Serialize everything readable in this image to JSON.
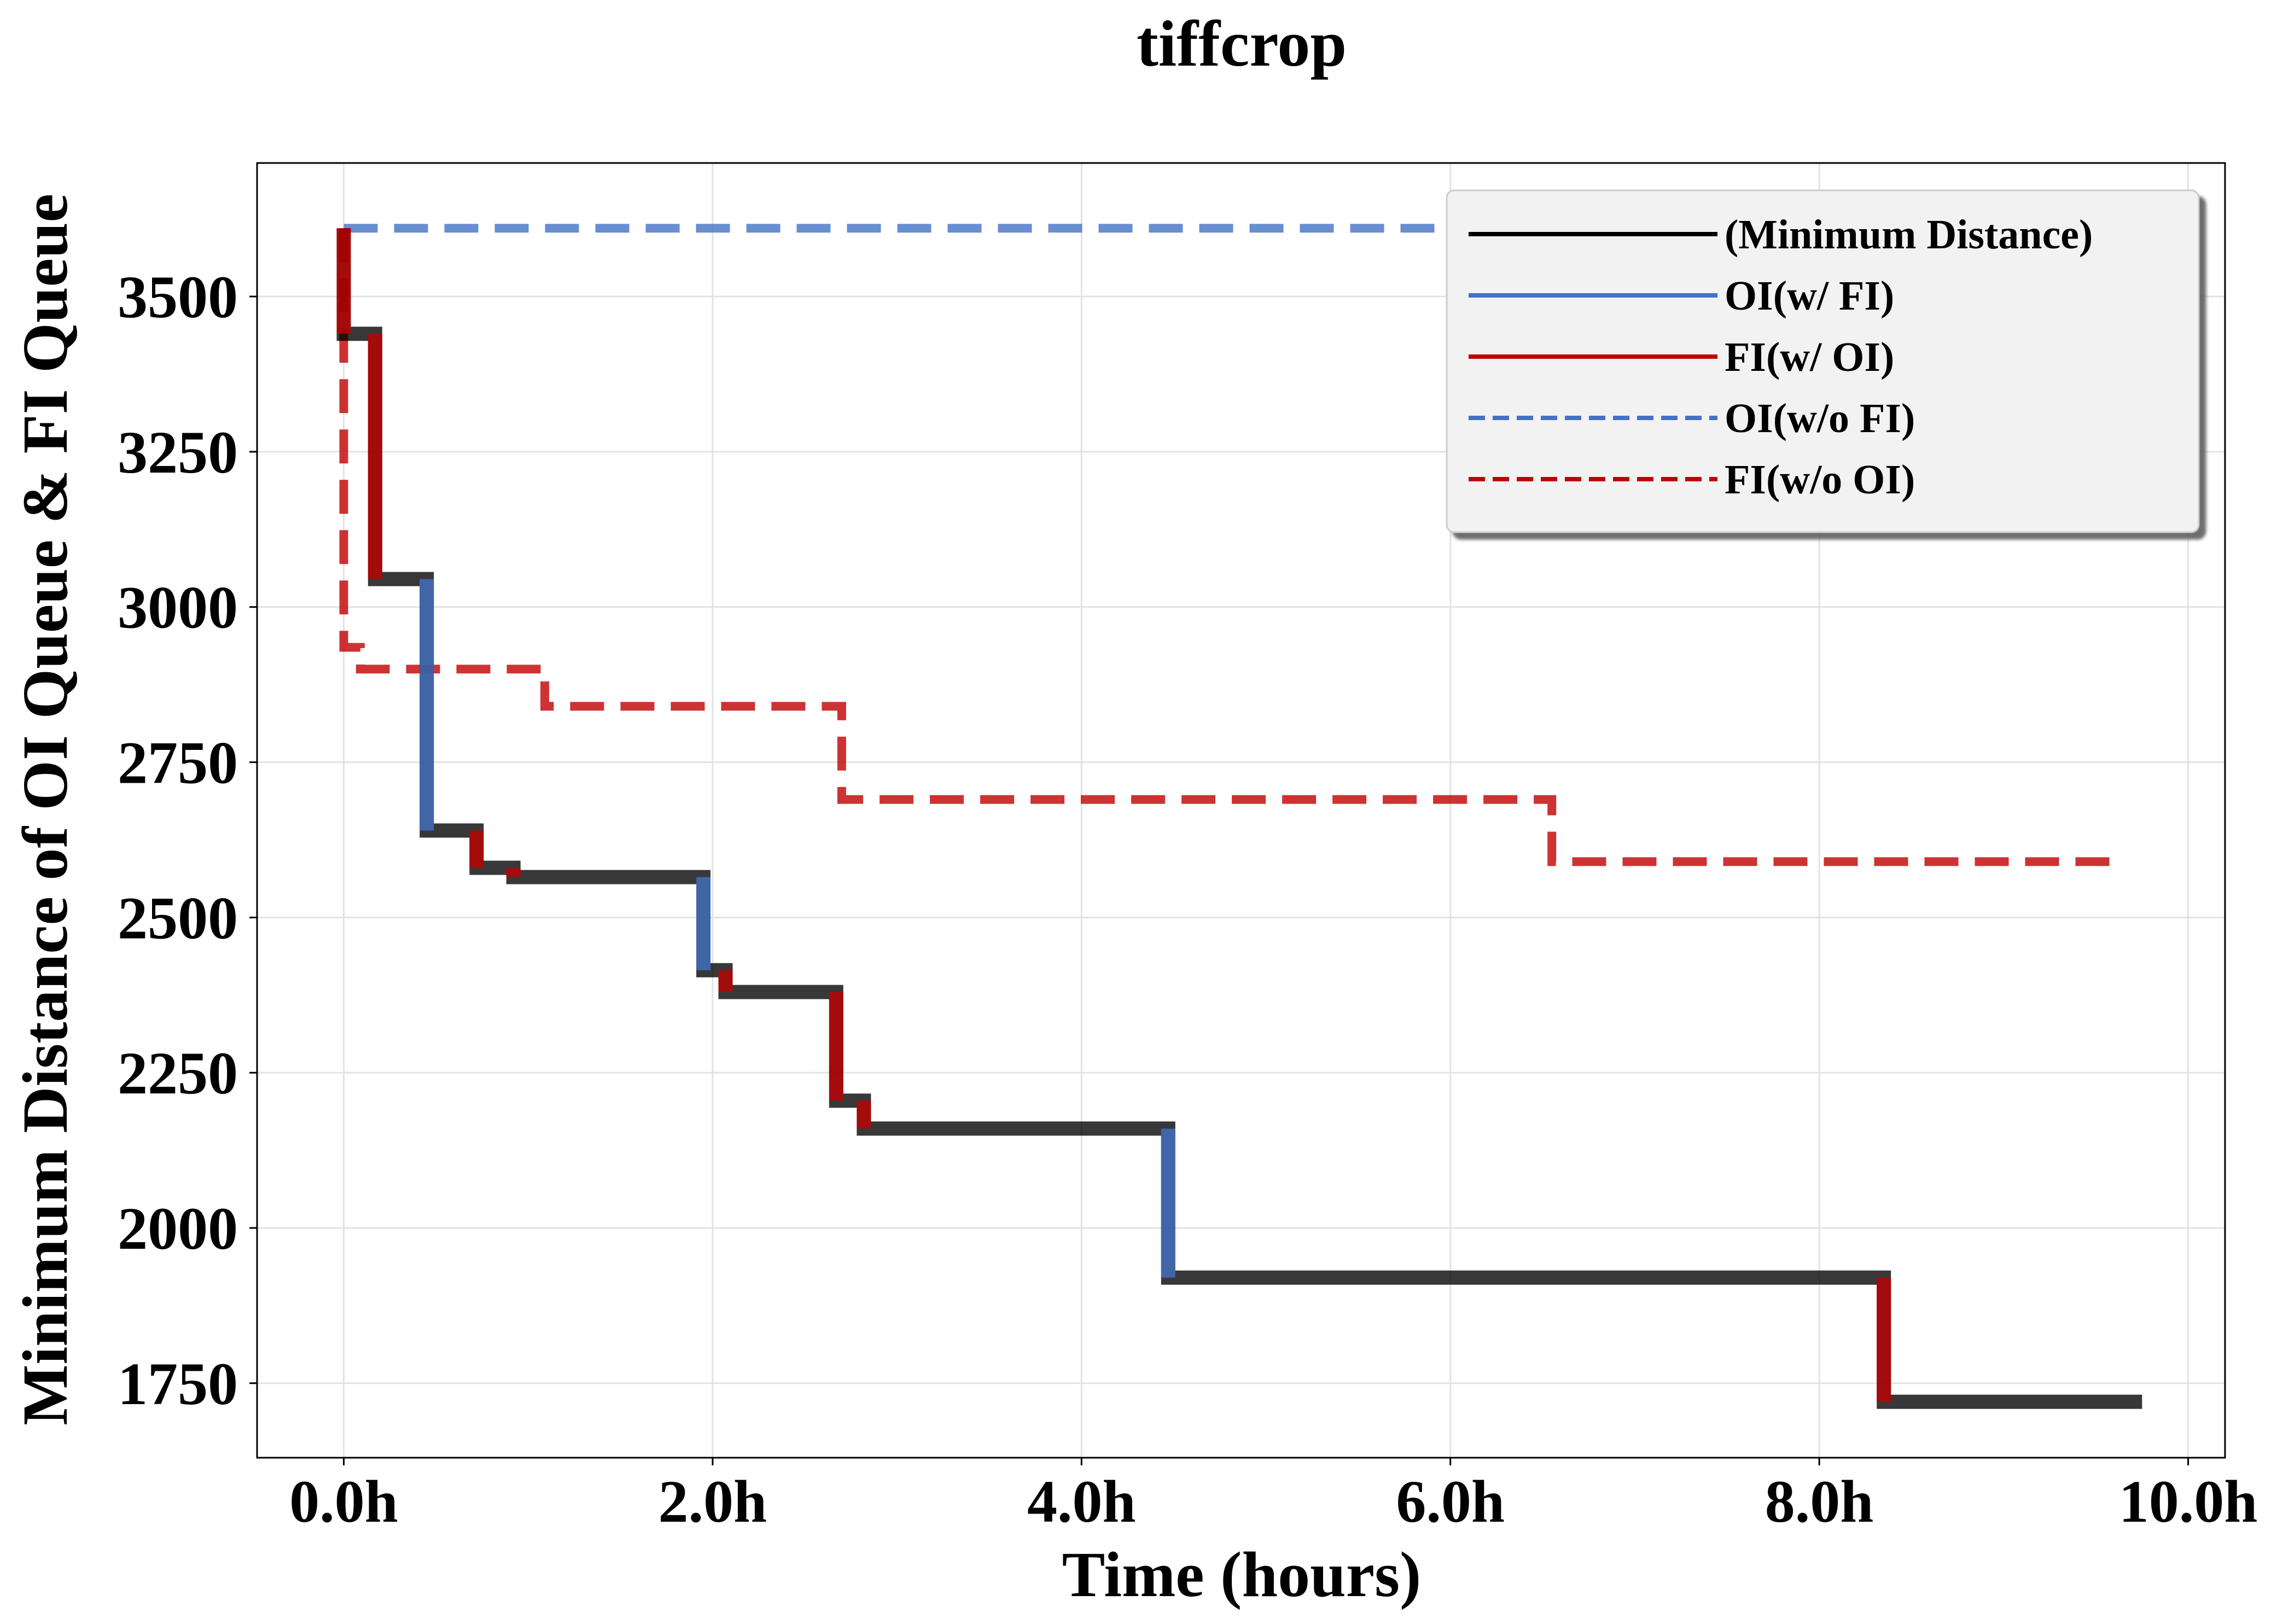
{
  "chart_data": {
    "type": "line",
    "title": "tiffcrop",
    "xlabel": "Time (hours)",
    "ylabel": "Minimum Distance of OI Queue & FI Queue",
    "xlim": [
      -0.47,
      10.2
    ],
    "ylim": [
      1630,
      3715
    ],
    "xticks": [
      0,
      2,
      4,
      6,
      8,
      10
    ],
    "xtick_labels": [
      "0.0h",
      "2.0h",
      "4.0h",
      "6.0h",
      "8.0h",
      "10.0h"
    ],
    "yticks": [
      1750,
      2000,
      2250,
      2500,
      2750,
      3000,
      3250,
      3500
    ],
    "ytick_labels": [
      "1750",
      "2000",
      "2250",
      "2500",
      "2750",
      "3000",
      "3250",
      "3500"
    ],
    "grid": true,
    "legend_position": "top-right",
    "colors": {
      "min": "#000000",
      "oi": "#4472c4",
      "fi": "#c00000"
    },
    "legend": [
      {
        "label": "(Minimum Distance)",
        "color": "#000000",
        "dash": false
      },
      {
        "label": "OI(w/ FI)",
        "color": "#4472c4",
        "dash": false
      },
      {
        "label": "FI(w/ OI)",
        "color": "#c00000",
        "dash": false
      },
      {
        "label": "OI(w/o FI)",
        "color": "#4472c4",
        "dash": true
      },
      {
        "label": "FI(w/o OI)",
        "color": "#c00000",
        "dash": true
      }
    ],
    "series": [
      {
        "label": "(Minimum Distance)",
        "style": "step",
        "color": "#000000",
        "points": [
          [
            0.0,
            3610
          ],
          [
            0.0,
            3440
          ],
          [
            0.17,
            3440
          ],
          [
            0.17,
            3045
          ],
          [
            0.45,
            3045
          ],
          [
            0.45,
            2640
          ],
          [
            0.72,
            2640
          ],
          [
            0.72,
            2580
          ],
          [
            0.92,
            2580
          ],
          [
            0.92,
            2565
          ],
          [
            1.95,
            2565
          ],
          [
            1.95,
            2415
          ],
          [
            2.07,
            2415
          ],
          [
            2.07,
            2380
          ],
          [
            2.67,
            2380
          ],
          [
            2.67,
            2205
          ],
          [
            2.82,
            2205
          ],
          [
            2.82,
            2160
          ],
          [
            4.47,
            2160
          ],
          [
            4.47,
            1920
          ],
          [
            8.35,
            1920
          ],
          [
            8.35,
            1720
          ],
          [
            9.75,
            1720
          ]
        ]
      },
      {
        "label": "OI(w/o FI)",
        "style": "dashed",
        "color": "#4472c4",
        "points": [
          [
            0.0,
            3610
          ],
          [
            6.05,
            3610
          ]
        ]
      },
      {
        "label": "FI(w/o OI)",
        "style": "dashed",
        "color": "#c00000",
        "points": [
          [
            0.0,
            3610
          ],
          [
            0.0,
            2935
          ],
          [
            0.09,
            2935
          ],
          [
            0.09,
            2900
          ],
          [
            1.09,
            2900
          ],
          [
            1.09,
            2840
          ],
          [
            2.7,
            2840
          ],
          [
            2.7,
            2690
          ],
          [
            6.55,
            2690
          ],
          [
            6.55,
            2590
          ],
          [
            9.65,
            2590
          ]
        ]
      }
    ],
    "segments": [
      {
        "label": "FI(w/ OI)",
        "x": 0.0,
        "y1": 3610,
        "y2": 3440
      },
      {
        "label": "FI(w/ OI)",
        "x": 0.17,
        "y1": 3440,
        "y2": 3045
      },
      {
        "label": "OI(w/ FI)",
        "x": 0.45,
        "y1": 3045,
        "y2": 2640
      },
      {
        "label": "FI(w/ OI)",
        "x": 0.72,
        "y1": 2640,
        "y2": 2580
      },
      {
        "label": "FI(w/ OI)",
        "x": 0.92,
        "y1": 2580,
        "y2": 2565
      },
      {
        "label": "OI(w/ FI)",
        "x": 1.95,
        "y1": 2565,
        "y2": 2415
      },
      {
        "label": "FI(w/ OI)",
        "x": 2.07,
        "y1": 2415,
        "y2": 2380
      },
      {
        "label": "FI(w/ OI)",
        "x": 2.67,
        "y1": 2380,
        "y2": 2205
      },
      {
        "label": "FI(w/ OI)",
        "x": 2.82,
        "y1": 2205,
        "y2": 2160
      },
      {
        "label": "OI(w/ FI)",
        "x": 4.47,
        "y1": 2160,
        "y2": 1920
      },
      {
        "label": "FI(w/ OI)",
        "x": 8.35,
        "y1": 1920,
        "y2": 1720
      }
    ]
  }
}
